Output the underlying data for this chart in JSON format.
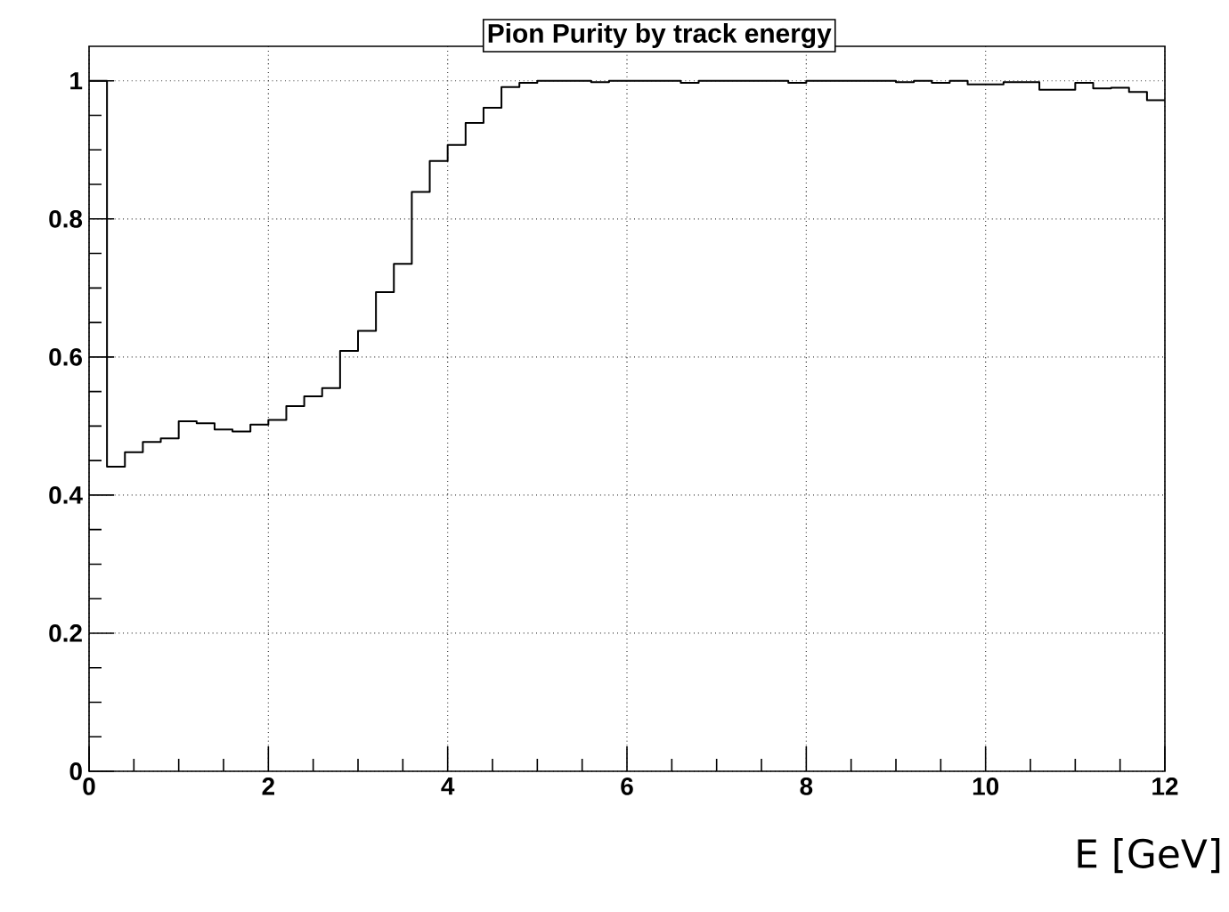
{
  "chart_data": {
    "type": "histogram",
    "title": "Pion Purity by track energy",
    "xlabel": "E [GeV]",
    "bins": [
      0,
      0.2,
      0.4,
      0.6,
      0.8,
      1.0,
      1.2,
      1.4,
      1.6,
      1.8,
      2.0,
      2.2,
      2.4,
      2.6,
      2.8,
      3.0,
      3.2,
      3.4,
      3.6,
      3.8,
      4.0,
      4.2,
      4.4,
      4.6,
      4.8,
      5.0,
      5.2,
      5.4,
      5.6,
      5.8,
      6.0,
      6.2,
      6.4,
      6.6,
      6.8,
      7.0,
      7.2,
      7.4,
      7.6,
      7.8,
      8.0,
      8.2,
      8.4,
      8.6,
      8.8,
      9.0,
      9.2,
      9.4,
      9.6,
      9.8,
      10.0,
      10.2,
      10.4,
      10.6,
      10.8,
      11.0,
      11.2,
      11.4,
      11.6,
      11.8,
      12.0
    ],
    "values": [
      1.0,
      0.441,
      0.462,
      0.477,
      0.482,
      0.507,
      0.504,
      0.495,
      0.492,
      0.502,
      0.509,
      0.529,
      0.543,
      0.555,
      0.609,
      0.638,
      0.694,
      0.735,
      0.839,
      0.884,
      0.907,
      0.939,
      0.961,
      0.991,
      0.997,
      1.0,
      1.0,
      1.0,
      0.998,
      1.0,
      1.0,
      1.0,
      1.0,
      0.997,
      1.0,
      1.0,
      1.0,
      1.0,
      1.0,
      0.997,
      1.0,
      1.0,
      1.0,
      1.0,
      1.0,
      0.998,
      1.0,
      0.997,
      1.0,
      0.995,
      0.995,
      0.998,
      0.998,
      0.987,
      0.987,
      0.997,
      0.989,
      0.99,
      0.984,
      0.972
    ],
    "color": "#000000",
    "xlim": [
      0,
      12
    ],
    "ylim": [
      0,
      1.05
    ],
    "xticks": [
      0,
      2,
      4,
      6,
      8,
      10,
      12
    ],
    "yticks": [
      0,
      0.2,
      0.4,
      0.6,
      0.8,
      1
    ],
    "grid": true
  }
}
